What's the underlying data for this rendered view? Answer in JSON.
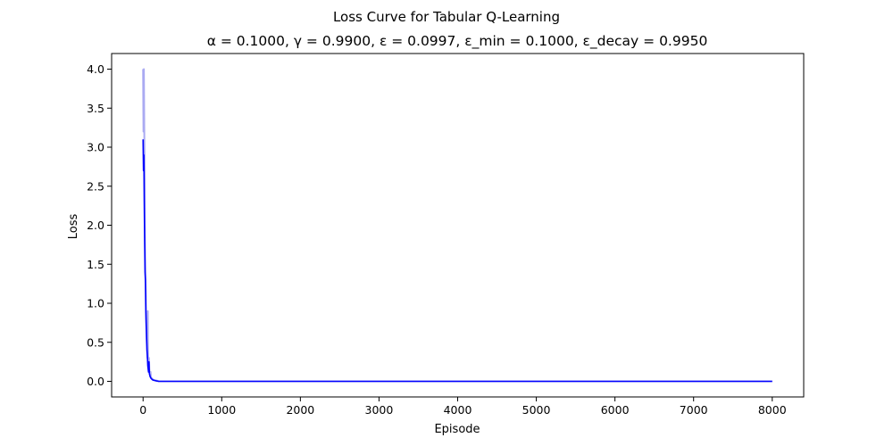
{
  "chart_data": {
    "type": "line",
    "title": "Loss Curve for Tabular Q-Learning",
    "subtitle": "α = 0.1000, γ = 0.9900, ε = 0.0997, ε_min = 0.1000, ε_decay = 0.9950",
    "xlabel": "Episode",
    "ylabel": "Loss",
    "xlim": [
      -400,
      8400
    ],
    "ylim": [
      -0.2,
      4.2
    ],
    "xticks": [
      0,
      1000,
      2000,
      3000,
      4000,
      5000,
      6000,
      7000,
      8000
    ],
    "yticks": [
      0.0,
      0.5,
      1.0,
      1.5,
      2.0,
      2.5,
      3.0,
      3.5,
      4.0
    ],
    "grid": false,
    "legend": "none",
    "series": [
      {
        "role": "raw",
        "color": "#aaaaf2",
        "x": [
          0,
          5,
          10,
          15,
          20,
          22,
          25,
          30,
          35,
          40,
          45,
          50,
          55,
          60,
          62,
          65,
          70,
          75,
          80,
          85,
          90,
          95,
          100,
          110,
          120,
          130,
          150,
          170,
          200,
          300,
          500,
          1000,
          8000
        ],
        "y": [
          4.0,
          3.2,
          4.0,
          3.25,
          2.6,
          2.0,
          1.7,
          1.3,
          1.1,
          0.75,
          0.55,
          0.4,
          0.3,
          0.9,
          0.45,
          0.2,
          0.12,
          0.3,
          0.15,
          0.1,
          0.07,
          0.12,
          0.05,
          0.04,
          0.03,
          0.02,
          0.015,
          0.01,
          0.0,
          0.0,
          0.0,
          0.0,
          0.0
        ]
      },
      {
        "role": "smoothed",
        "color": "#0000ff",
        "x": [
          0,
          5,
          10,
          15,
          20,
          25,
          30,
          35,
          40,
          45,
          50,
          55,
          60,
          65,
          70,
          75,
          80,
          85,
          90,
          95,
          100,
          110,
          120,
          130,
          150,
          170,
          200,
          300,
          500,
          1000,
          8000
        ],
        "y": [
          3.1,
          2.7,
          2.9,
          2.3,
          1.8,
          1.4,
          1.3,
          0.9,
          0.72,
          0.55,
          0.4,
          0.32,
          0.2,
          0.16,
          0.12,
          0.25,
          0.1,
          0.08,
          0.06,
          0.05,
          0.04,
          0.03,
          0.02,
          0.015,
          0.01,
          0.005,
          0.0,
          0.0,
          0.0,
          0.0,
          0.0
        ]
      }
    ]
  }
}
